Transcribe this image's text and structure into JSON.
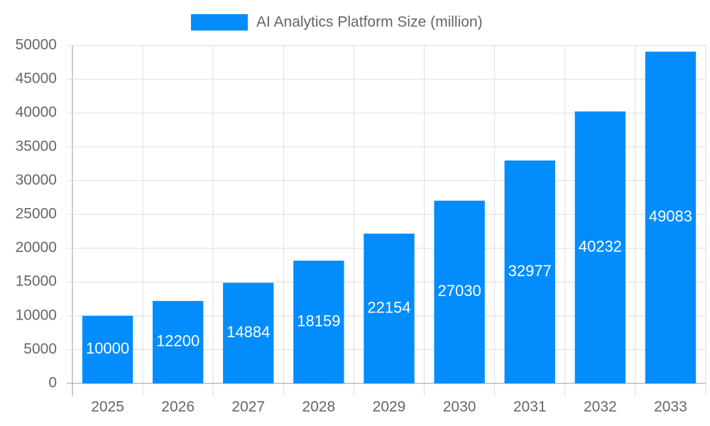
{
  "chart_data": {
    "type": "bar",
    "categories": [
      "2025",
      "2026",
      "2027",
      "2028",
      "2029",
      "2030",
      "2031",
      "2032",
      "2033"
    ],
    "series": [
      {
        "name": "AI Analytics Platform Size (million)",
        "color": "#038cfc",
        "values": [
          10000,
          12200,
          14884,
          18159,
          22154,
          27030,
          32977,
          40232,
          49083
        ]
      }
    ],
    "ylim": [
      0,
      50000
    ],
    "yticks": [
      0,
      5000,
      10000,
      15000,
      20000,
      25000,
      30000,
      35000,
      40000,
      45000,
      50000
    ],
    "grid": true,
    "legend": "top"
  }
}
